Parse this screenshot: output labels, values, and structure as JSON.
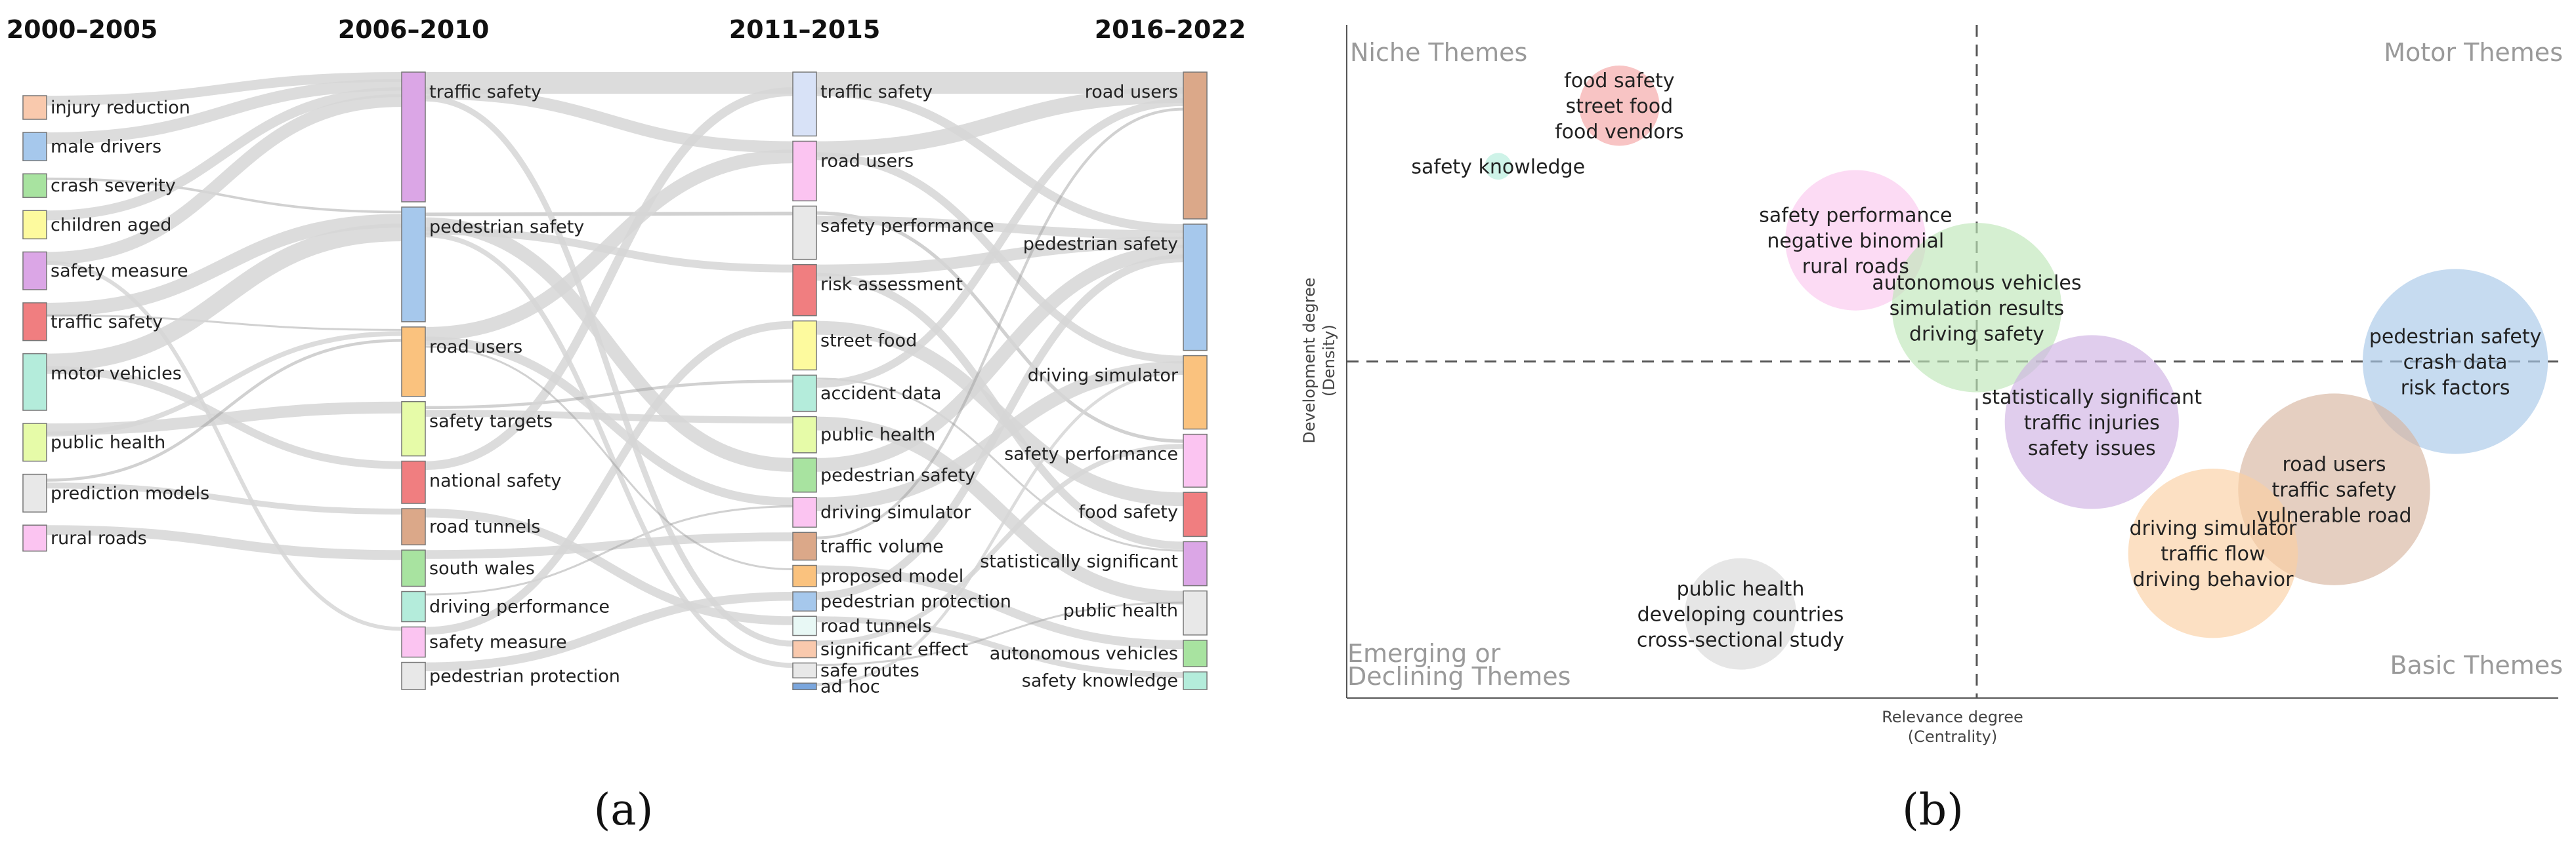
{
  "panel_labels": {
    "a": "(a)",
    "b": "(b)"
  },
  "colors": {
    "flow": "#d6d6d6",
    "flow_dark": "#9a9a9a",
    "axis": "#555555",
    "quadrant_label": "#9a9a9a"
  },
  "chart_data": [
    {
      "type": "sankey",
      "columns": [
        {
          "title": "2000–2005",
          "nodes": [
            {
              "label": "injury reduction",
              "color": "#f9c9ad",
              "weight": 1
            },
            {
              "label": "male drivers",
              "color": "#a6c8ec",
              "weight": 1.2
            },
            {
              "label": "crash severity",
              "color": "#a8e3a0",
              "weight": 1
            },
            {
              "label": "children aged",
              "color": "#fdfa9e",
              "weight": 1.2
            },
            {
              "label": "safety measure",
              "color": "#dba6e6",
              "weight": 1.6
            },
            {
              "label": "traffic safety",
              "color": "#f07e80",
              "weight": 1.6
            },
            {
              "label": "motor vehicles",
              "color": "#b4ecdb",
              "weight": 2.4
            },
            {
              "label": "public health",
              "color": "#e6fba8",
              "weight": 1.6
            },
            {
              "label": "prediction models",
              "color": "#e8e8e8",
              "weight": 1.6
            },
            {
              "label": "rural roads",
              "color": "#fbc4f1",
              "weight": 1.1
            }
          ]
        },
        {
          "title": "2006–2010",
          "nodes": [
            {
              "label": "traffic safety",
              "color": "#dba6e6",
              "weight": 4.3
            },
            {
              "label": "pedestrian safety",
              "color": "#a6c8ec",
              "weight": 3.8
            },
            {
              "label": "road users",
              "color": "#fac27e",
              "weight": 2.3
            },
            {
              "label": "safety targets",
              "color": "#e6fba8",
              "weight": 1.8
            },
            {
              "label": "national safety",
              "color": "#f07e80",
              "weight": 1.4
            },
            {
              "label": "road tunnels",
              "color": "#dba889",
              "weight": 1.2
            },
            {
              "label": "south wales",
              "color": "#a8e3a0",
              "weight": 1.2
            },
            {
              "label": "driving performance",
              "color": "#b4ecdb",
              "weight": 1
            },
            {
              "label": "safety measure",
              "color": "#fbc4f1",
              "weight": 1
            },
            {
              "label": "pedestrian protection",
              "color": "#e8e8e8",
              "weight": 0.9
            }
          ]
        },
        {
          "title": "2011–2015",
          "nodes": [
            {
              "label": "traffic safety",
              "color": "#d8e2f7",
              "weight": 3
            },
            {
              "label": "road users",
              "color": "#fbc4f1",
              "weight": 2.8
            },
            {
              "label": "safety performance",
              "color": "#e8e8e8",
              "weight": 2.5
            },
            {
              "label": "risk assessment",
              "color": "#f07e80",
              "weight": 2.4
            },
            {
              "label": "street food",
              "color": "#fdfa9e",
              "weight": 2.3
            },
            {
              "label": "accident data",
              "color": "#b4ecdb",
              "weight": 1.7
            },
            {
              "label": "public health",
              "color": "#e6fba8",
              "weight": 1.7
            },
            {
              "label": "pedestrian safety",
              "color": "#a8e3a0",
              "weight": 1.6
            },
            {
              "label": "driving simulator",
              "color": "#fbc4f1",
              "weight": 1.4
            },
            {
              "label": "traffic volume",
              "color": "#dba889",
              "weight": 1.3
            },
            {
              "label": "proposed model",
              "color": "#fac27e",
              "weight": 1
            },
            {
              "label": "pedestrian protection",
              "color": "#a6c8ec",
              "weight": 0.9
            },
            {
              "label": "road tunnels",
              "color": "#e8f8f5",
              "weight": 0.9
            },
            {
              "label": "significant effect",
              "color": "#f9c9ad",
              "weight": 0.8
            },
            {
              "label": "safe routes",
              "color": "#e8e8e8",
              "weight": 0.7
            },
            {
              "label": "ad hoc",
              "color": "#7aa6dd",
              "weight": 0.3
            }
          ]
        },
        {
          "title": "2016–2022",
          "nodes": [
            {
              "label": "road users",
              "color": "#dba889",
              "weight": 5
            },
            {
              "label": "pedestrian safety",
              "color": "#a6c8ec",
              "weight": 4.3
            },
            {
              "label": "driving simulator",
              "color": "#fac27e",
              "weight": 2.5
            },
            {
              "label": "safety performance",
              "color": "#fbc4f1",
              "weight": 1.8
            },
            {
              "label": "food safety",
              "color": "#f07e80",
              "weight": 1.5
            },
            {
              "label": "statistically significant",
              "color": "#dba6e6",
              "weight": 1.5
            },
            {
              "label": "public health",
              "color": "#e8e8e8",
              "weight": 1.5
            },
            {
              "label": "autonomous vehicles",
              "color": "#a8e3a0",
              "weight": 0.9
            },
            {
              "label": "safety knowledge",
              "color": "#b4ecdb",
              "weight": 0.6
            }
          ]
        }
      ],
      "links": [
        [
          0,
          0,
          1,
          0,
          1
        ],
        [
          0,
          1,
          1,
          0,
          1.2
        ],
        [
          0,
          2,
          1,
          1,
          1
        ],
        [
          0,
          3,
          1,
          0,
          1
        ],
        [
          0,
          4,
          1,
          0,
          1.3
        ],
        [
          0,
          4,
          1,
          8,
          0.4
        ],
        [
          0,
          5,
          1,
          1,
          1.4
        ],
        [
          0,
          5,
          1,
          2,
          0.6
        ],
        [
          0,
          6,
          1,
          1,
          1.8
        ],
        [
          0,
          6,
          1,
          4,
          0.8
        ],
        [
          0,
          7,
          1,
          3,
          1.2
        ],
        [
          0,
          7,
          1,
          2,
          0.5
        ],
        [
          0,
          8,
          1,
          2,
          1.2
        ],
        [
          0,
          8,
          1,
          5,
          0.6
        ],
        [
          0,
          9,
          1,
          6,
          1
        ],
        [
          1,
          0,
          2,
          0,
          2.2
        ],
        [
          1,
          0,
          2,
          1,
          1.2
        ],
        [
          1,
          1,
          2,
          2,
          1.5
        ],
        [
          1,
          1,
          2,
          7,
          1.4
        ],
        [
          1,
          1,
          2,
          3,
          0.8
        ],
        [
          1,
          2,
          2,
          1,
          1.4
        ],
        [
          1,
          2,
          2,
          8,
          0.9
        ],
        [
          1,
          3,
          2,
          5,
          1.2
        ],
        [
          1,
          3,
          2,
          6,
          0.7
        ],
        [
          1,
          4,
          2,
          0,
          0.9
        ],
        [
          1,
          5,
          2,
          12,
          0.9
        ],
        [
          1,
          6,
          2,
          9,
          0.9
        ],
        [
          1,
          7,
          2,
          8,
          0.6
        ],
        [
          1,
          8,
          2,
          4,
          0.8
        ],
        [
          1,
          9,
          2,
          11,
          0.9
        ],
        [
          1,
          0,
          2,
          13,
          0.6
        ],
        [
          1,
          1,
          2,
          14,
          0.5
        ],
        [
          1,
          2,
          2,
          10,
          0.8
        ],
        [
          2,
          0,
          3,
          0,
          2.2
        ],
        [
          2,
          0,
          3,
          1,
          0.9
        ],
        [
          2,
          1,
          3,
          0,
          1.6
        ],
        [
          2,
          1,
          3,
          2,
          0.8
        ],
        [
          2,
          2,
          3,
          3,
          1.4
        ],
        [
          2,
          2,
          3,
          1,
          0.9
        ],
        [
          2,
          3,
          3,
          1,
          1.2
        ],
        [
          2,
          3,
          3,
          5,
          0.8
        ],
        [
          2,
          4,
          3,
          4,
          1.4
        ],
        [
          2,
          5,
          3,
          5,
          0.7
        ],
        [
          2,
          5,
          3,
          0,
          0.8
        ],
        [
          2,
          6,
          3,
          6,
          1.4
        ],
        [
          2,
          7,
          3,
          1,
          1.4
        ],
        [
          2,
          8,
          3,
          2,
          1.4
        ],
        [
          2,
          9,
          3,
          0,
          1.1
        ],
        [
          2,
          10,
          3,
          7,
          0.9
        ],
        [
          2,
          11,
          3,
          1,
          0.8
        ],
        [
          2,
          12,
          3,
          8,
          0.6
        ],
        [
          2,
          13,
          3,
          3,
          0.5
        ],
        [
          2,
          14,
          3,
          6,
          0.4
        ],
        [
          2,
          15,
          3,
          2,
          0.3
        ]
      ]
    },
    {
      "type": "bubble",
      "xlabel": "Relevance degree",
      "xlabel2": "(Centrality)",
      "ylabel": "Development degree",
      "ylabel2": "(Density)",
      "xlim": [
        0,
        100
      ],
      "ylim": [
        0,
        100
      ],
      "x_divider": 52,
      "y_divider": 50,
      "quadrant_labels": {
        "top_left": "Niche Themes",
        "top_right": "Motor Themes",
        "bottom_left_1": "Emerging or",
        "bottom_left_2": "Declining Themes",
        "bottom_right": "Basic Themes"
      },
      "points": [
        {
          "x": 22.5,
          "y": 88,
          "size": 3.6,
          "color": "#f4a4a4",
          "label_lines": [
            "food safety",
            "street food",
            "food vendors"
          ]
        },
        {
          "x": 12.5,
          "y": 79,
          "size": 1.2,
          "color": "#b4ecdb",
          "label_lines": [
            "safety knowledge"
          ]
        },
        {
          "x": 42,
          "y": 68,
          "size": 6.3,
          "color": "#fbc8ee",
          "label_lines": [
            "safety performance",
            "negative binomial",
            "rural roads"
          ]
        },
        {
          "x": 52,
          "y": 58,
          "size": 7.6,
          "color": "#bfe6b8",
          "label_lines": [
            "autonomous vehicles",
            "simulation results",
            "driving safety"
          ]
        },
        {
          "x": 91.5,
          "y": 50,
          "size": 8.3,
          "color": "#a8c8e8",
          "label_lines": [
            "pedestrian safety",
            "crash data",
            "risk factors"
          ]
        },
        {
          "x": 61.5,
          "y": 41,
          "size": 7.8,
          "color": "#cfb2e3",
          "label_lines": [
            "statistically significant",
            "traffic injuries",
            "safety issues"
          ]
        },
        {
          "x": 81.5,
          "y": 31,
          "size": 8.6,
          "color": "#d7b5a0",
          "label_lines": [
            "road users",
            "traffic safety",
            "vulnerable road"
          ]
        },
        {
          "x": 71.5,
          "y": 21.5,
          "size": 7.6,
          "color": "#fbd0a3",
          "label_lines": [
            "driving simulator",
            "traffic flow",
            "driving behavior"
          ]
        },
        {
          "x": 32.5,
          "y": 12.5,
          "size": 5,
          "color": "#d8d8d8",
          "label_lines": [
            "public health",
            "developing countries",
            "cross-sectional study"
          ]
        }
      ]
    }
  ]
}
